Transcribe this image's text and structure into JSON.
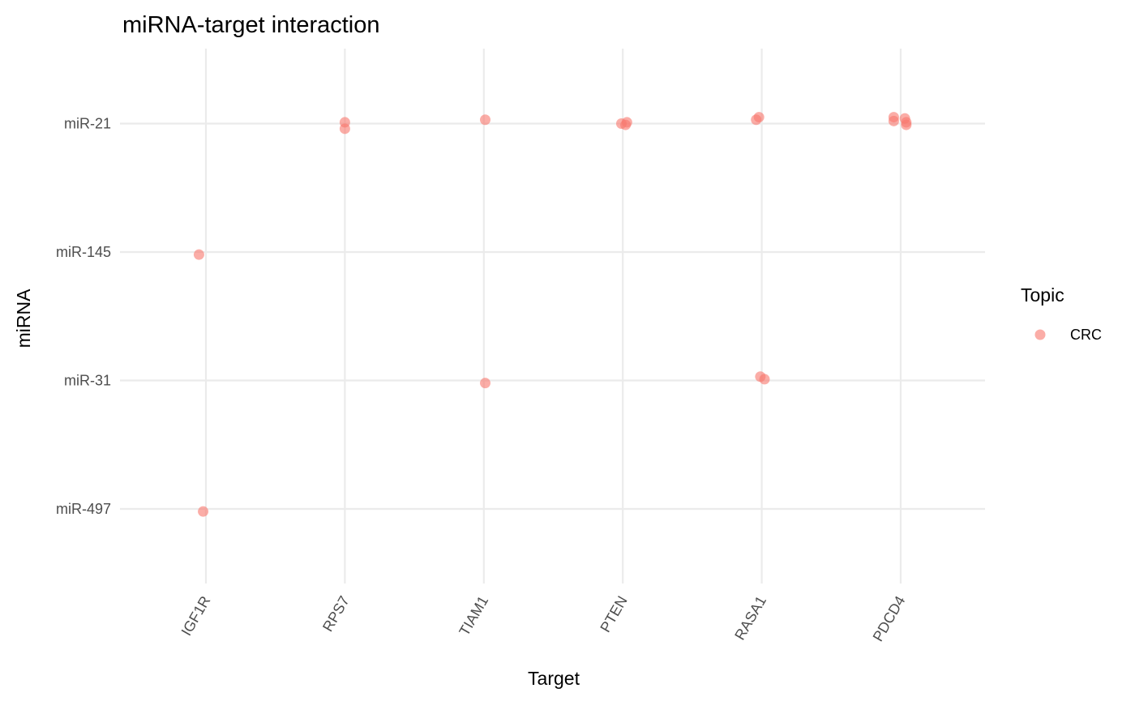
{
  "chart_data": {
    "type": "scatter",
    "title": "miRNA-target interaction",
    "xlabel": "Target",
    "ylabel": "miRNA",
    "x_categories": [
      "IGF1R",
      "RPS7",
      "TIAM1",
      "PTEN",
      "RASA1",
      "PDCD4"
    ],
    "y_categories": [
      "miR-497",
      "miR-31",
      "miR-145",
      "miR-21"
    ],
    "grid": true,
    "legend": {
      "title": "Topic",
      "placement": "right",
      "entries": [
        {
          "label": "CRC",
          "color": "#F8766D"
        }
      ]
    },
    "point_color": "#F8766D",
    "point_alpha": 0.6,
    "jitter": true,
    "series": [
      {
        "name": "CRC",
        "points": [
          {
            "x": "IGF1R",
            "y": "miR-145",
            "dx": -0.05,
            "dy": -0.02
          },
          {
            "x": "IGF1R",
            "y": "miR-497",
            "dx": -0.02,
            "dy": -0.02
          },
          {
            "x": "RPS7",
            "y": "miR-21",
            "dx": 0.0,
            "dy": 0.01
          },
          {
            "x": "RPS7",
            "y": "miR-21",
            "dx": 0.0,
            "dy": -0.04
          },
          {
            "x": "TIAM1",
            "y": "miR-21",
            "dx": 0.01,
            "dy": 0.03
          },
          {
            "x": "TIAM1",
            "y": "miR-31",
            "dx": 0.01,
            "dy": -0.02
          },
          {
            "x": "PTEN",
            "y": "miR-21",
            "dx": -0.01,
            "dy": 0.0
          },
          {
            "x": "PTEN",
            "y": "miR-21",
            "dx": 0.03,
            "dy": 0.01
          },
          {
            "x": "PTEN",
            "y": "miR-21",
            "dx": 0.02,
            "dy": -0.01
          },
          {
            "x": "RASA1",
            "y": "miR-21",
            "dx": -0.04,
            "dy": 0.03
          },
          {
            "x": "RASA1",
            "y": "miR-21",
            "dx": -0.02,
            "dy": 0.05
          },
          {
            "x": "RASA1",
            "y": "miR-31",
            "dx": -0.01,
            "dy": 0.03
          },
          {
            "x": "RASA1",
            "y": "miR-31",
            "dx": 0.02,
            "dy": 0.01
          },
          {
            "x": "PDCD4",
            "y": "miR-21",
            "dx": -0.05,
            "dy": 0.05
          },
          {
            "x": "PDCD4",
            "y": "miR-21",
            "dx": -0.05,
            "dy": 0.02
          },
          {
            "x": "PDCD4",
            "y": "miR-21",
            "dx": 0.03,
            "dy": 0.04
          },
          {
            "x": "PDCD4",
            "y": "miR-21",
            "dx": 0.04,
            "dy": 0.01
          },
          {
            "x": "PDCD4",
            "y": "miR-21",
            "dx": 0.04,
            "dy": -0.01
          }
        ]
      }
    ]
  }
}
